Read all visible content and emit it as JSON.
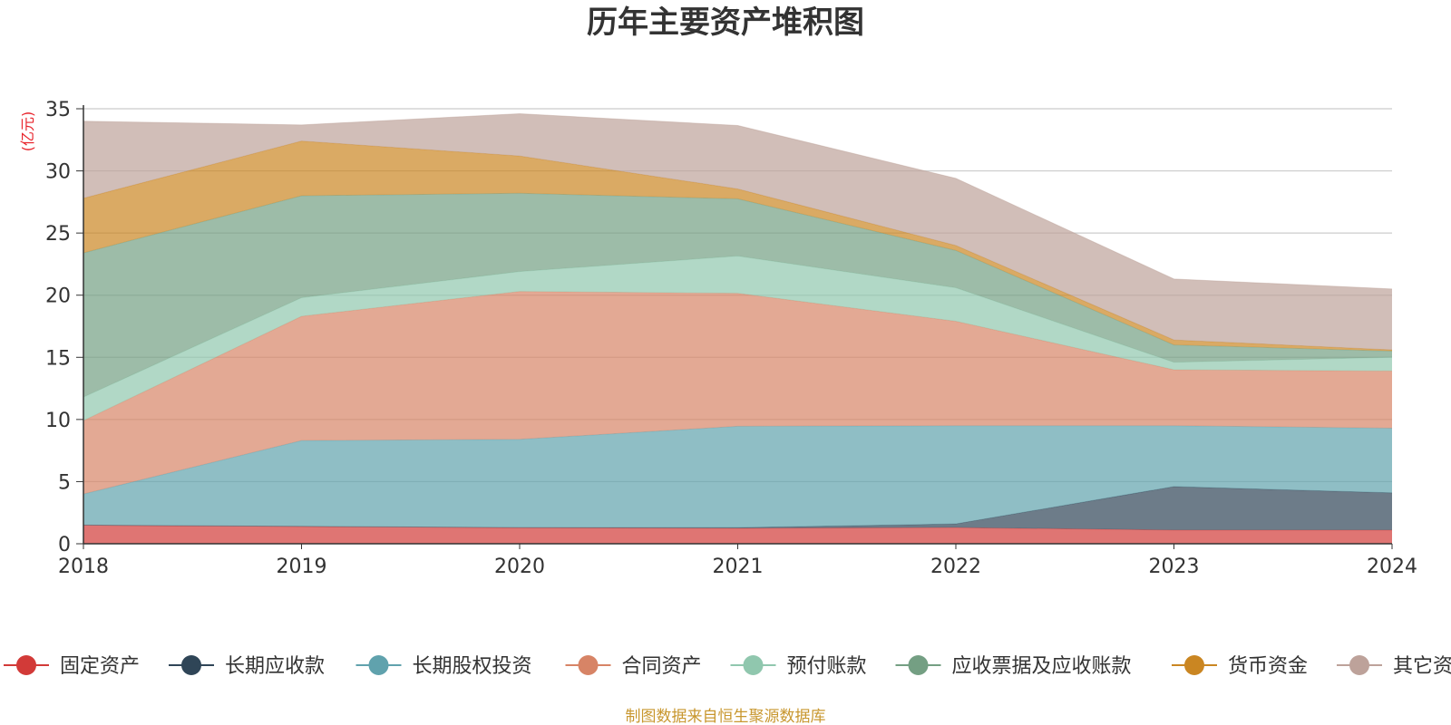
{
  "chart_data": {
    "type": "area",
    "stacked": true,
    "title": "历年主要资产堆积图",
    "unit_label": "(亿元)",
    "x": [
      "2018",
      "2019",
      "2020",
      "2021",
      "2022",
      "2023",
      "2024"
    ],
    "ylim": [
      0,
      35
    ],
    "yticks": [
      0,
      5,
      10,
      15,
      20,
      25,
      30,
      35
    ],
    "grid": true,
    "legend_position": "bottom",
    "series": [
      {
        "name": "固定资产",
        "color": "#d23a38",
        "values": [
          1.5,
          1.4,
          1.3,
          1.25,
          1.3,
          1.1,
          1.1
        ]
      },
      {
        "name": "长期应收款",
        "color": "#2f4557",
        "values": [
          0,
          0,
          0,
          0.05,
          0.3,
          3.5,
          3.0
        ]
      },
      {
        "name": "长期股权投资",
        "color": "#60a2ad",
        "values": [
          2.5,
          6.9,
          7.1,
          8.15,
          7.9,
          4.9,
          5.2
        ]
      },
      {
        "name": "合同资产",
        "color": "#d78466",
        "values": [
          5.9,
          10.0,
          11.9,
          10.7,
          8.4,
          4.5,
          4.6
        ]
      },
      {
        "name": "预付账款",
        "color": "#90c7ae",
        "values": [
          1.9,
          1.5,
          1.6,
          3.0,
          2.7,
          0.6,
          1.1
        ]
      },
      {
        "name": "应收票据及应收账款",
        "color": "#749f83",
        "values": [
          11.6,
          8.2,
          6.3,
          4.6,
          3.0,
          1.4,
          0.5
        ]
      },
      {
        "name": "货币资金",
        "color": "#ca8622",
        "values": [
          4.4,
          4.4,
          3.0,
          0.8,
          0.4,
          0.4,
          0.1
        ]
      },
      {
        "name": "其它资产",
        "color": "#bda29a",
        "values": [
          6.2,
          1.3,
          3.4,
          5.1,
          5.4,
          4.9,
          4.9
        ]
      }
    ]
  },
  "footer": {
    "source": "制图数据来自恒生聚源数据库"
  }
}
